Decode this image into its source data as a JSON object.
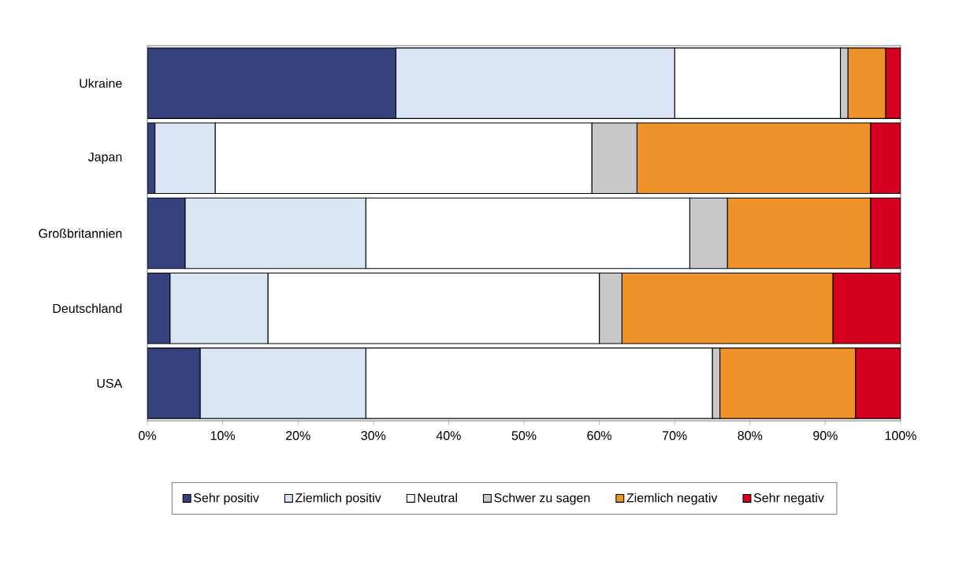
{
  "chart_data": {
    "type": "bar",
    "orientation": "horizontal",
    "stacked": true,
    "categories": [
      "Ukraine",
      "Japan",
      "Großbritannien",
      "Deutschland",
      "USA"
    ],
    "series": [
      {
        "name": "Sehr positiv",
        "color": "#36427e",
        "values": [
          33,
          1,
          5,
          3,
          7
        ]
      },
      {
        "name": "Ziemlich positiv",
        "color": "#dae5f5",
        "values": [
          37,
          8,
          24,
          13,
          22
        ]
      },
      {
        "name": "Neutral",
        "color": "#ffffff",
        "values": [
          22,
          50,
          43,
          44,
          46
        ]
      },
      {
        "name": "Schwer zu sagen",
        "color": "#c8c8c8",
        "values": [
          1,
          6,
          5,
          3,
          1
        ]
      },
      {
        "name": "Ziemlich negativ",
        "color": "#ef922a",
        "values": [
          5,
          31,
          19,
          28,
          18
        ]
      },
      {
        "name": "Sehr negativ",
        "color": "#d50020",
        "values": [
          2,
          4,
          4,
          9,
          6
        ]
      }
    ],
    "xlim": [
      0,
      100
    ],
    "xticks": [
      {
        "value": 0,
        "label": "0%"
      },
      {
        "value": 10,
        "label": "10%"
      },
      {
        "value": 20,
        "label": "20%"
      },
      {
        "value": 30,
        "label": "30%"
      },
      {
        "value": 40,
        "label": "40%"
      },
      {
        "value": 50,
        "label": "50%"
      },
      {
        "value": 60,
        "label": "60%"
      },
      {
        "value": 70,
        "label": "70%"
      },
      {
        "value": 80,
        "label": "80%"
      },
      {
        "value": 90,
        "label": "90%"
      },
      {
        "value": 100,
        "label": "100%"
      }
    ],
    "legend": "bottom",
    "grid": false
  }
}
